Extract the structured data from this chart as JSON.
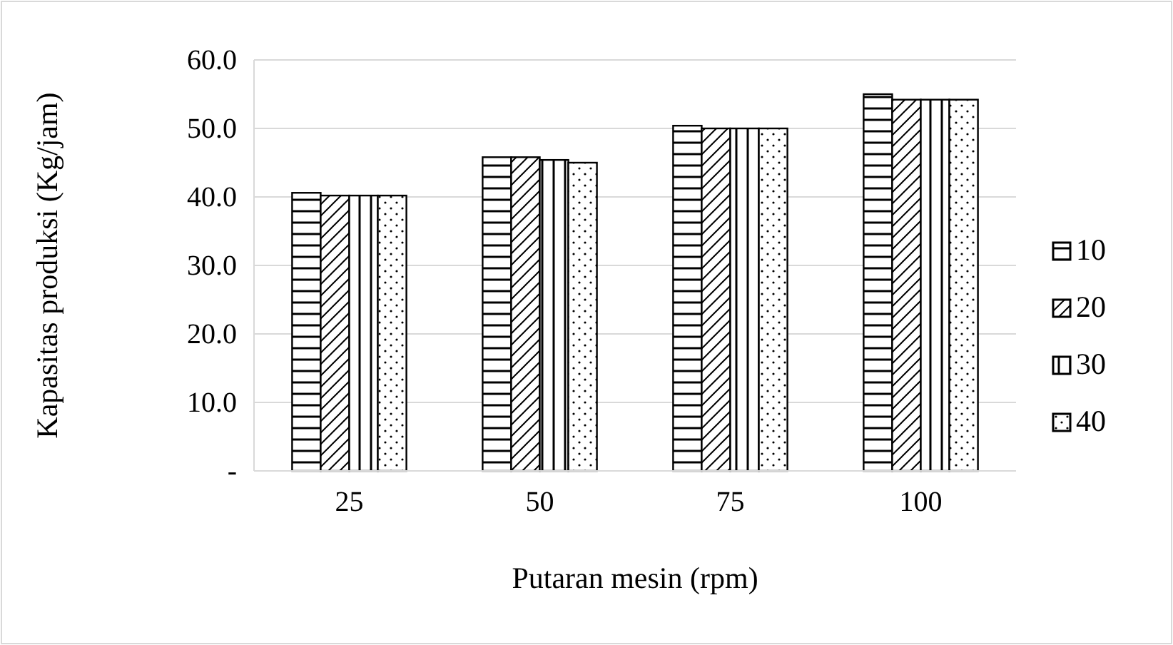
{
  "chart_data": {
    "type": "bar",
    "xlabel": "Putaran mesin (rpm)",
    "ylabel": "Kapasitas produksi (Kg/jam)",
    "categories": [
      "25",
      "50",
      "75",
      "100"
    ],
    "series": [
      {
        "name": "10",
        "color": "#000000",
        "values": [
          40.6,
          45.8,
          50.4,
          55.0
        ]
      },
      {
        "name": "20",
        "color": "#000000",
        "values": [
          40.2,
          45.8,
          50.0,
          54.2
        ]
      },
      {
        "name": "30",
        "color": "#000000",
        "values": [
          40.2,
          45.4,
          50.0,
          54.2
        ]
      },
      {
        "name": "40",
        "color": "#000000",
        "values": [
          40.2,
          45.0,
          50.0,
          54.2
        ]
      }
    ],
    "ylim": [
      0,
      60
    ],
    "yticks": [
      {
        "value": 0,
        "label": "-"
      },
      {
        "value": 10,
        "label": "10.0"
      },
      {
        "value": 20,
        "label": "20.0"
      },
      {
        "value": 30,
        "label": "30.0"
      },
      {
        "value": 40,
        "label": "40.0"
      },
      {
        "value": 50,
        "label": "50.0"
      },
      {
        "value": 60,
        "label": "60.0"
      }
    ],
    "grid": "y",
    "legend": "right"
  }
}
